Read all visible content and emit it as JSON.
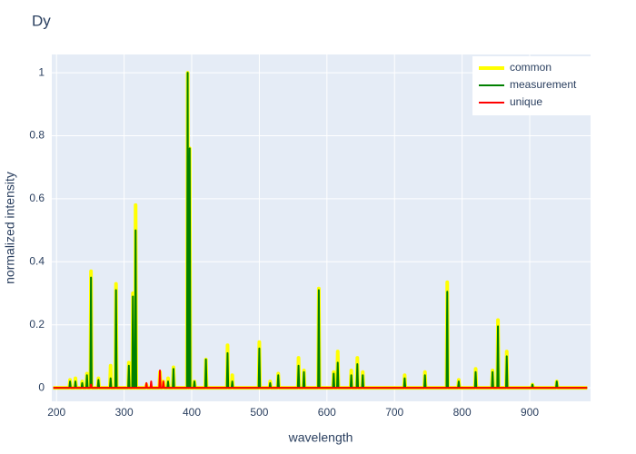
{
  "chart_data": {
    "type": "line",
    "title": "Dy",
    "x_label": "wavelength",
    "y_label": "normalized intensity",
    "x": [
      195,
      219,
      220,
      221,
      227,
      228,
      229,
      237,
      238,
      239,
      244,
      245,
      246,
      250,
      251,
      252,
      261,
      262,
      263,
      279,
      280,
      281,
      287,
      288,
      289,
      306,
      307,
      308,
      312,
      313,
      314,
      316,
      317,
      318,
      332,
      333,
      334,
      339,
      340,
      341,
      352,
      353,
      354,
      357,
      358,
      359,
      364,
      365,
      366,
      372,
      373,
      374,
      393,
      394,
      395,
      396,
      397,
      398,
      403,
      404,
      405,
      420,
      421,
      422,
      452,
      453,
      454,
      459,
      460,
      461,
      499,
      500,
      501,
      515,
      516,
      517,
      527,
      528,
      529,
      557,
      558,
      559,
      565,
      566,
      567,
      587,
      588,
      589,
      609,
      610,
      611,
      615,
      616,
      617,
      635,
      636,
      637,
      644,
      645,
      646,
      652,
      653,
      654,
      714,
      715,
      716,
      744,
      745,
      746,
      777,
      778,
      779,
      794,
      795,
      796,
      819,
      820,
      821,
      844,
      845,
      846,
      852,
      853,
      854,
      865,
      866,
      867,
      903,
      904,
      905,
      939,
      940,
      941,
      985
    ],
    "series": [
      {
        "name": "common",
        "color": "#ffff00",
        "width": 4,
        "values": [
          0,
          0,
          0.025,
          0,
          0,
          0.03,
          0,
          0,
          0.02,
          0,
          0,
          0.045,
          0,
          0,
          0.37,
          0,
          0,
          0.03,
          0,
          0,
          0.07,
          0,
          0,
          0.33,
          0,
          0,
          0.08,
          0,
          0,
          0.3,
          0,
          0,
          0.58,
          0,
          0,
          0.01,
          0,
          0,
          0,
          0,
          0,
          0.05,
          0,
          0,
          0.02,
          0,
          0,
          0.03,
          0,
          0,
          0.065,
          0,
          0,
          1,
          0,
          0,
          0.76,
          0,
          0,
          0.02,
          0,
          0,
          0.09,
          0,
          0,
          0.135,
          0,
          0,
          0.04,
          0,
          0,
          0.145,
          0,
          0,
          0.02,
          0,
          0,
          0.045,
          0,
          0,
          0.095,
          0,
          0,
          0.055,
          0,
          0,
          0.315,
          0,
          0,
          0.05,
          0,
          0,
          0.115,
          0,
          0,
          0.055,
          0,
          0,
          0.095,
          0,
          0,
          0.05,
          0,
          0,
          0.04,
          0,
          0,
          0.05,
          0,
          0,
          0.335,
          0,
          0,
          0.025,
          0,
          0,
          0.06,
          0,
          0,
          0.055,
          0,
          0,
          0.215,
          0,
          0,
          0.115,
          0,
          0,
          0.01,
          0,
          0,
          0.02,
          0,
          0
        ]
      },
      {
        "name": "measurement",
        "color": "#008000",
        "width": 2,
        "values": [
          0,
          0,
          0.02,
          0,
          0,
          0.02,
          0,
          0,
          0.015,
          0,
          0,
          0.04,
          0,
          0,
          0.35,
          0,
          0,
          0.025,
          0,
          0,
          0.03,
          0,
          0,
          0.31,
          0,
          0,
          0.07,
          0,
          0,
          0.29,
          0,
          0,
          0.5,
          0,
          0,
          0.005,
          0,
          0,
          0,
          0,
          0,
          0,
          0,
          0,
          0.01,
          0,
          0,
          0.02,
          0,
          0,
          0.06,
          0,
          0,
          1,
          0,
          0,
          0.76,
          0,
          0,
          0.02,
          0,
          0,
          0.09,
          0,
          0,
          0.11,
          0,
          0,
          0.02,
          0,
          0,
          0.125,
          0,
          0,
          0.015,
          0,
          0,
          0.04,
          0,
          0,
          0.07,
          0,
          0,
          0.05,
          0,
          0,
          0.31,
          0,
          0,
          0.045,
          0,
          0,
          0.08,
          0,
          0,
          0.04,
          0,
          0,
          0.075,
          0,
          0,
          0.04,
          0,
          0,
          0.03,
          0,
          0,
          0.04,
          0,
          0,
          0.305,
          0,
          0,
          0.02,
          0,
          0,
          0.05,
          0,
          0,
          0.05,
          0,
          0,
          0.195,
          0,
          0,
          0.1,
          0,
          0,
          0.01,
          0,
          0,
          0.02,
          0,
          0
        ]
      },
      {
        "name": "unique",
        "color": "#ff0000",
        "width": 2,
        "values": [
          0,
          0,
          0,
          0,
          0,
          0,
          0,
          0,
          0,
          0,
          0,
          0,
          0,
          0,
          0.01,
          0,
          0,
          0,
          0,
          0,
          0,
          0,
          0,
          0,
          0,
          0,
          0,
          0,
          0,
          0,
          0,
          0,
          0,
          0,
          0,
          0.015,
          0,
          0,
          0.02,
          0,
          0,
          0.055,
          0,
          0,
          0.02,
          0,
          0,
          0,
          0,
          0,
          0,
          0,
          0,
          0,
          0,
          0,
          0,
          0,
          0,
          0,
          0,
          0,
          0,
          0,
          0,
          0,
          0,
          0,
          0,
          0,
          0,
          0,
          0,
          0,
          0,
          0,
          0,
          0,
          0,
          0,
          0,
          0,
          0,
          0,
          0,
          0,
          0,
          0,
          0,
          0,
          0,
          0,
          0,
          0,
          0,
          0,
          0,
          0,
          0,
          0,
          0,
          0,
          0,
          0,
          0,
          0,
          0,
          0,
          0,
          0,
          0,
          0,
          0,
          0,
          0,
          0,
          0,
          0,
          0,
          0,
          0,
          0,
          0,
          0,
          0,
          0,
          0,
          0,
          0,
          0,
          0,
          0,
          0,
          0
        ]
      }
    ],
    "xlim": [
      193,
      990
    ],
    "ylim": [
      -0.043,
      1.058
    ],
    "xticks": [
      200,
      300,
      400,
      500,
      600,
      700,
      800,
      900
    ],
    "yticks": [
      0,
      0.2,
      0.4,
      0.6,
      0.8,
      1
    ],
    "grid": true,
    "legend": "top-right"
  }
}
